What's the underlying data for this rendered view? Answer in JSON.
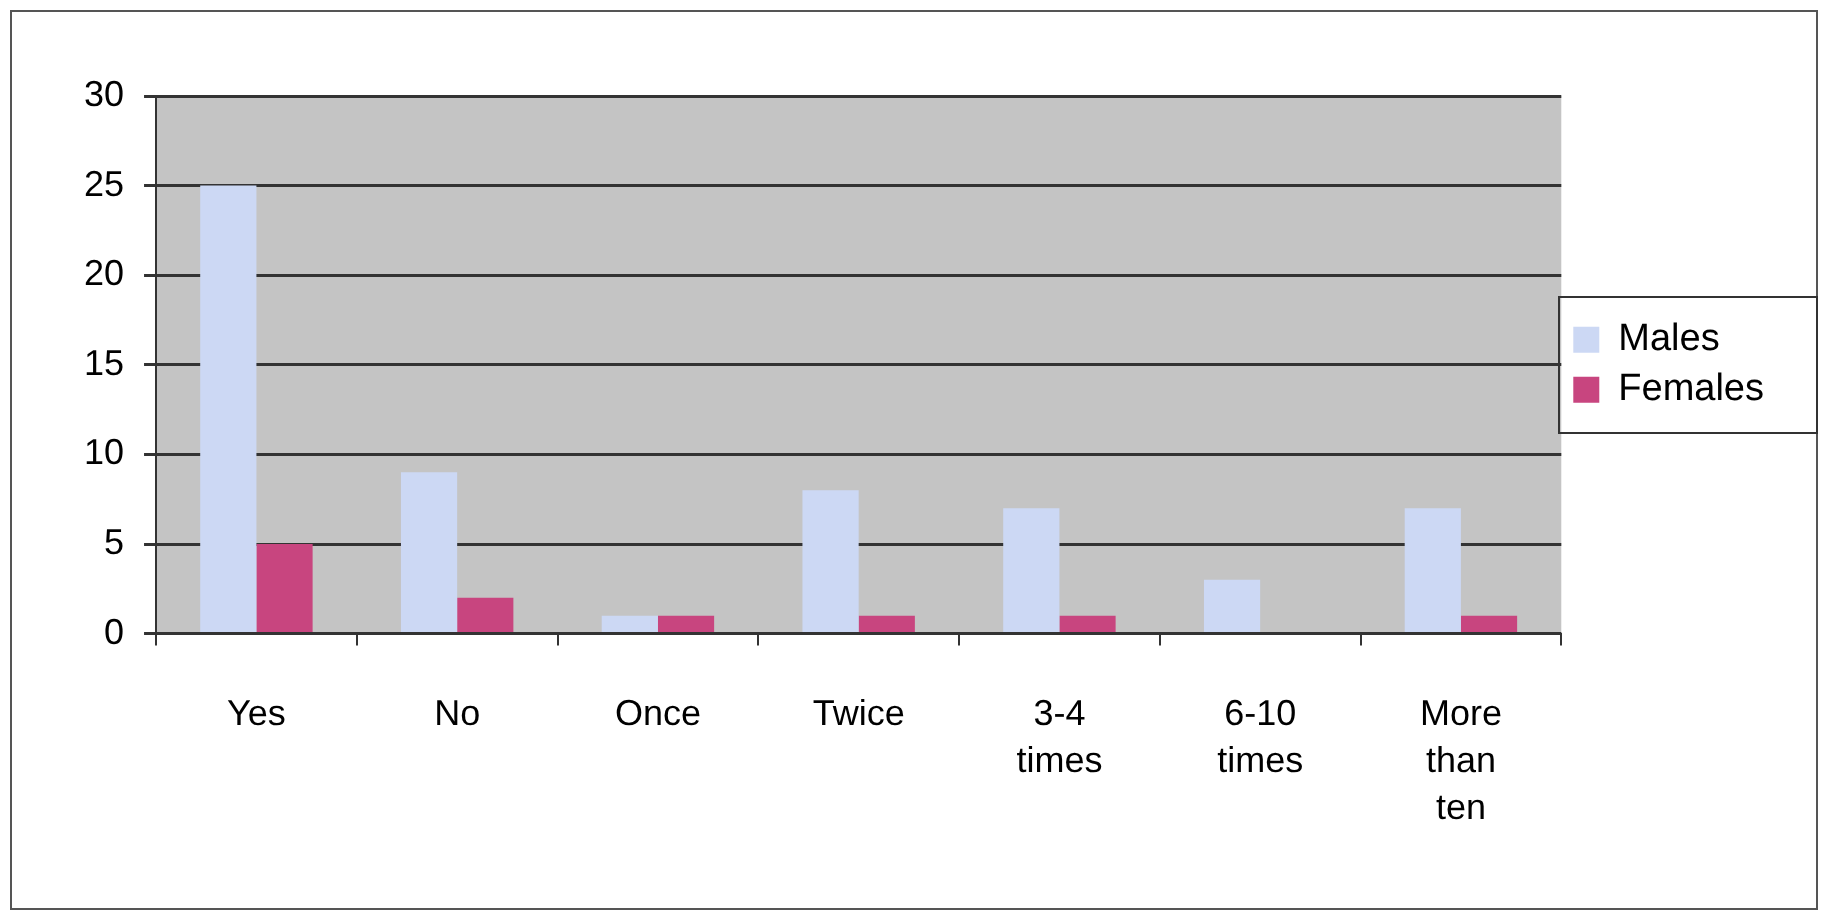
{
  "chart_data": {
    "type": "bar",
    "categories": [
      "Yes",
      "No",
      "Once",
      "Twice",
      "3-4 times",
      "6-10 times",
      "More than ten"
    ],
    "series": [
      {
        "name": "Males",
        "color": "#ccd8f4",
        "values": [
          25,
          9,
          1,
          8,
          7,
          3,
          7
        ]
      },
      {
        "name": "Females",
        "color": "#c8457f",
        "values": [
          5,
          2,
          1,
          1,
          1,
          0,
          1
        ]
      }
    ],
    "ylim": [
      0,
      30
    ],
    "yticks": [
      0,
      5,
      10,
      15,
      20,
      25,
      30
    ],
    "grid": "y",
    "legend": "right"
  }
}
